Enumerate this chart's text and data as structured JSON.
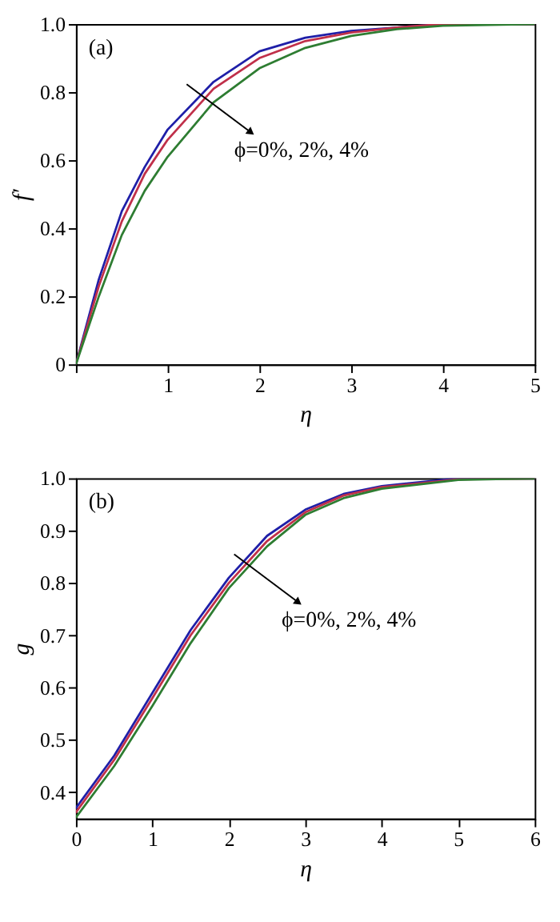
{
  "chart_data": [
    {
      "type": "line",
      "xlabel": "η",
      "ylabel": "f′",
      "annotations": [
        "(a)",
        "ϕ=0%, 2%, 4%"
      ],
      "xlim": [
        0,
        5
      ],
      "ylim": [
        0,
        1.0
      ],
      "xticks": [
        {
          "value": 0,
          "label": null
        },
        1,
        2,
        3,
        4,
        5
      ],
      "yticks": [
        0,
        0.2,
        0.4,
        0.6,
        0.8,
        {
          "value": 1.0,
          "label": "1.0"
        }
      ],
      "x": [
        0,
        0.25,
        0.5,
        0.75,
        1,
        1.5,
        2,
        2.5,
        3,
        3.5,
        4,
        5
      ],
      "series": [
        {
          "color": "#1f1fa8",
          "values": [
            0,
            0.25,
            0.45,
            0.58,
            0.69,
            0.83,
            0.92,
            0.96,
            0.98,
            0.99,
            1.0,
            1.0
          ]
        },
        {
          "color": "#c0304a",
          "values": [
            0,
            0.23,
            0.42,
            0.56,
            0.66,
            0.81,
            0.9,
            0.95,
            0.975,
            0.99,
            1.0,
            1.0
          ]
        },
        {
          "color": "#2e7d32",
          "values": [
            0,
            0.2,
            0.38,
            0.51,
            0.61,
            0.77,
            0.87,
            0.93,
            0.965,
            0.985,
            0.995,
            1.0
          ]
        }
      ],
      "grid": false,
      "legend": false,
      "line_style": "solid",
      "marker": "none"
    },
    {
      "type": "line",
      "xlabel": "η",
      "ylabel": "g",
      "annotations": [
        "(b)",
        "ϕ=0%, 2%, 4%"
      ],
      "xlim": [
        0,
        6
      ],
      "ylim": [
        0.35,
        1.0
      ],
      "xticks": [
        0,
        1,
        2,
        3,
        4,
        5,
        6
      ],
      "yticks": [
        0.4,
        0.5,
        0.6,
        0.7,
        0.8,
        0.9,
        {
          "value": 1.0,
          "label": "1.0"
        }
      ],
      "x": [
        0,
        0.5,
        1,
        1.5,
        2,
        2.5,
        3,
        3.5,
        4,
        5,
        6
      ],
      "series": [
        {
          "color": "#1f1fa8",
          "values": [
            0.37,
            0.47,
            0.59,
            0.71,
            0.81,
            0.89,
            0.94,
            0.97,
            0.985,
            1.0,
            1.0
          ]
        },
        {
          "color": "#c0304a",
          "values": [
            0.362,
            0.462,
            0.58,
            0.7,
            0.8,
            0.88,
            0.935,
            0.967,
            0.983,
            0.998,
            1.0
          ]
        },
        {
          "color": "#2e7d32",
          "values": [
            0.352,
            0.45,
            0.565,
            0.685,
            0.79,
            0.87,
            0.93,
            0.962,
            0.98,
            0.997,
            1.0
          ]
        }
      ],
      "grid": false,
      "legend": false,
      "line_style": "solid",
      "marker": "none"
    }
  ]
}
